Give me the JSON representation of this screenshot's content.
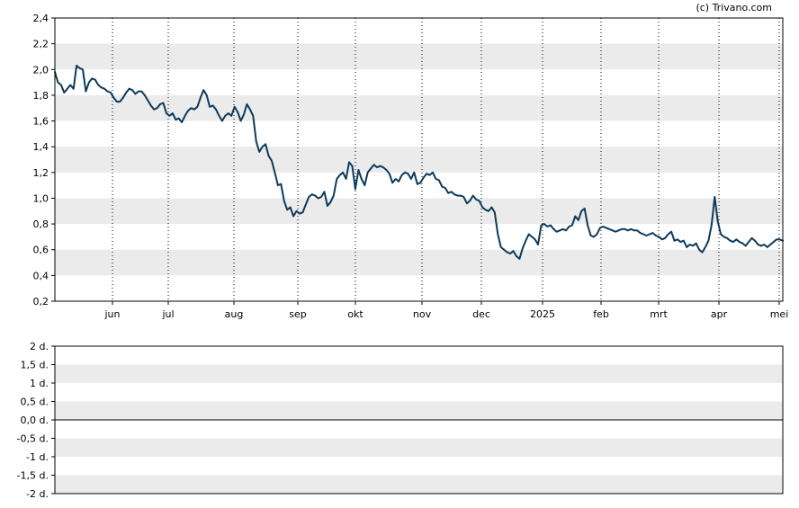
{
  "copyright": "(c) Trivano.com",
  "colors": {
    "line": "#0c3b5c",
    "band": "#ebebeb",
    "frame": "#000000",
    "grid": "#000000"
  },
  "chart_data": [
    {
      "type": "line",
      "title": "",
      "xlabel": "",
      "ylabel": "",
      "ylim": [
        0.2,
        2.4
      ],
      "y_ticks": [
        "0,2",
        "0,4",
        "0,6",
        "0,8",
        "1,0",
        "1,2",
        "1,4",
        "1,6",
        "1,8",
        "2,0",
        "2,2",
        "2,4"
      ],
      "x_ticks": [
        "jun",
        "jul",
        "aug",
        "sep",
        "okt",
        "nov",
        "dec",
        "2025",
        "feb",
        "mrt",
        "apr",
        "mei"
      ],
      "grid": "vertical dotted",
      "series": [
        {
          "values": [
            1.98,
            1.9,
            1.88,
            1.82,
            1.85,
            1.88,
            1.85,
            2.03,
            2.01,
            2.0,
            1.83,
            1.9,
            1.93,
            1.92,
            1.88,
            1.86,
            1.85,
            1.83,
            1.82,
            1.78,
            1.75,
            1.75,
            1.78,
            1.82,
            1.85,
            1.84,
            1.81,
            1.83,
            1.83,
            1.8,
            1.76,
            1.72,
            1.69,
            1.7,
            1.73,
            1.74,
            1.66,
            1.64,
            1.66,
            1.61,
            1.62,
            1.59,
            1.64,
            1.68,
            1.7,
            1.69,
            1.71,
            1.78,
            1.84,
            1.8,
            1.71,
            1.72,
            1.69,
            1.64,
            1.6,
            1.64,
            1.66,
            1.64,
            1.71,
            1.67,
            1.6,
            1.65,
            1.73,
            1.69,
            1.64,
            1.44,
            1.36,
            1.4,
            1.42,
            1.33,
            1.29,
            1.2,
            1.1,
            1.11,
            0.98,
            0.91,
            0.93,
            0.86,
            0.9,
            0.88,
            0.89,
            0.95,
            1.01,
            1.03,
            1.02,
            1.0,
            1.01,
            1.05,
            0.94,
            0.97,
            1.02,
            1.15,
            1.18,
            1.2,
            1.15,
            1.28,
            1.25,
            1.07,
            1.22,
            1.15,
            1.1,
            1.2,
            1.23,
            1.26,
            1.24,
            1.25,
            1.24,
            1.22,
            1.19,
            1.12,
            1.15,
            1.13,
            1.18,
            1.2,
            1.19,
            1.15,
            1.2,
            1.11,
            1.12,
            1.16,
            1.19,
            1.18,
            1.2,
            1.15,
            1.14,
            1.09,
            1.08,
            1.04,
            1.05,
            1.03,
            1.02,
            1.02,
            1.01,
            0.96,
            0.98,
            1.02,
            0.99,
            0.98,
            0.93,
            0.91,
            0.9,
            0.93,
            0.89,
            0.72,
            0.62,
            0.6,
            0.58,
            0.57,
            0.59,
            0.55,
            0.53,
            0.61,
            0.67,
            0.72,
            0.7,
            0.68,
            0.64,
            0.79,
            0.8,
            0.78,
            0.79,
            0.76,
            0.74,
            0.75,
            0.76,
            0.75,
            0.78,
            0.79,
            0.86,
            0.83,
            0.9,
            0.92,
            0.79,
            0.71,
            0.7,
            0.72,
            0.77,
            0.78,
            0.77,
            0.76,
            0.75,
            0.74,
            0.75,
            0.76,
            0.76,
            0.75,
            0.76,
            0.75,
            0.75,
            0.73,
            0.72,
            0.71,
            0.72,
            0.73,
            0.71,
            0.7,
            0.68,
            0.69,
            0.72,
            0.74,
            0.67,
            0.68,
            0.66,
            0.67,
            0.62,
            0.64,
            0.63,
            0.65,
            0.6,
            0.58,
            0.62,
            0.67,
            0.79,
            1.01,
            0.82,
            0.72,
            0.7,
            0.69,
            0.67,
            0.66,
            0.68,
            0.66,
            0.65,
            0.63,
            0.66,
            0.69,
            0.67,
            0.64,
            0.63,
            0.64,
            0.62,
            0.64,
            0.66,
            0.68,
            0.68,
            0.67
          ]
        }
      ]
    },
    {
      "type": "line",
      "title": "",
      "xlabel": "",
      "ylabel": "",
      "ylim": [
        -2,
        2
      ],
      "y_ticks": [
        "-2 d.",
        "-1,5 d.",
        "-1 d.",
        "-0,5 d.",
        "0,0 d.",
        "0,5 d.",
        "1 d.",
        "1,5 d.",
        "2 d."
      ],
      "series": []
    }
  ]
}
